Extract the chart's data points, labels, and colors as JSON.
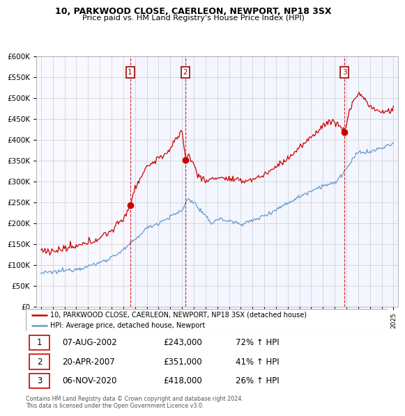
{
  "title": "10, PARKWOOD CLOSE, CAERLEON, NEWPORT, NP18 3SX",
  "subtitle": "Price paid vs. HM Land Registry's House Price Index (HPI)",
  "hpi_label": "HPI: Average price, detached house, Newport",
  "price_label": "10, PARKWOOD CLOSE, CAERLEON, NEWPORT, NP18 3SX (detached house)",
  "transactions": [
    {
      "num": 1,
      "date": "07-AUG-2002",
      "price": 243000,
      "pct": "72%",
      "dir": "↑"
    },
    {
      "num": 2,
      "date": "20-APR-2007",
      "price": 351000,
      "pct": "41%",
      "dir": "↑"
    },
    {
      "num": 3,
      "date": "06-NOV-2020",
      "price": 418000,
      "pct": "26%",
      "dir": "↑"
    }
  ],
  "transaction_years": [
    2002.58,
    2007.29,
    2020.84
  ],
  "transaction_prices": [
    243000,
    351000,
    418000
  ],
  "price_color": "#cc0000",
  "hpi_color": "#6699cc",
  "vline_color": "#cc0000",
  "shade_color": "#ddeeff",
  "bg_color": "#ffffff",
  "ylim": [
    0,
    600000
  ],
  "yticks": [
    0,
    50000,
    100000,
    150000,
    200000,
    250000,
    300000,
    350000,
    400000,
    450000,
    500000,
    550000,
    600000
  ],
  "xlim_start": 1994.6,
  "xlim_end": 2025.4,
  "footer": "Contains HM Land Registry data © Crown copyright and database right 2024.\nThis data is licensed under the Open Government Licence v3.0.",
  "hpi_anchors_x": [
    1995.0,
    1996.0,
    1997.0,
    1998.0,
    1999.0,
    2000.0,
    2001.0,
    2002.0,
    2003.0,
    2004.0,
    2005.0,
    2006.0,
    2007.0,
    2007.5,
    2008.0,
    2009.0,
    2009.5,
    2010.0,
    2011.0,
    2012.0,
    2013.0,
    2014.0,
    2015.0,
    2016.0,
    2017.0,
    2018.0,
    2019.0,
    2020.0,
    2021.0,
    2022.0,
    2023.0,
    2024.0,
    2025.0
  ],
  "hpi_anchors_y": [
    80000,
    82000,
    86000,
    90000,
    96000,
    105000,
    118000,
    135000,
    160000,
    188000,
    200000,
    215000,
    230000,
    258000,
    250000,
    215000,
    200000,
    210000,
    205000,
    198000,
    205000,
    218000,
    232000,
    248000,
    263000,
    278000,
    290000,
    295000,
    330000,
    370000,
    370000,
    380000,
    390000
  ],
  "price_anchors_x": [
    1995.0,
    1996.0,
    1997.0,
    1998.0,
    1999.0,
    2000.0,
    2001.0,
    2002.0,
    2002.58,
    2003.0,
    2004.0,
    2005.0,
    2006.0,
    2006.5,
    2007.0,
    2007.29,
    2007.5,
    2008.0,
    2008.5,
    2009.0,
    2009.5,
    2010.0,
    2011.0,
    2012.0,
    2013.0,
    2014.0,
    2015.0,
    2016.0,
    2017.0,
    2018.0,
    2019.0,
    2020.0,
    2020.84,
    2021.0,
    2021.5,
    2022.0,
    2022.5,
    2023.0,
    2023.5,
    2024.0,
    2024.5,
    2025.0
  ],
  "price_anchors_y": [
    135000,
    132000,
    138000,
    143000,
    152000,
    165000,
    182000,
    210000,
    243000,
    285000,
    335000,
    355000,
    375000,
    400000,
    425000,
    351000,
    365000,
    340000,
    310000,
    300000,
    305000,
    310000,
    305000,
    300000,
    305000,
    315000,
    335000,
    355000,
    380000,
    405000,
    435000,
    445000,
    418000,
    440000,
    490000,
    510000,
    500000,
    480000,
    470000,
    465000,
    468000,
    472000
  ]
}
